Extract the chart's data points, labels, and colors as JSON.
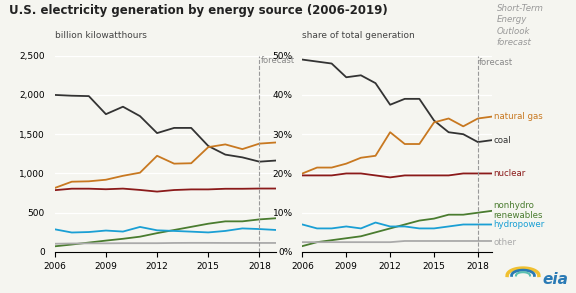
{
  "title": "U.S. electricity generation by energy source (2006-2019)",
  "ylabel_left": "billion kilowatthours",
  "ylabel_right": "share of total generation",
  "forecast_year": 2018,
  "years": [
    2006,
    2007,
    2008,
    2009,
    2010,
    2011,
    2012,
    2013,
    2014,
    2015,
    2016,
    2017,
    2018,
    2019
  ],
  "coal_abs": [
    2000,
    1990,
    1985,
    1755,
    1850,
    1730,
    1514,
    1580,
    1580,
    1350,
    1240,
    1205,
    1150,
    1165
  ],
  "natgas_abs": [
    815,
    895,
    900,
    920,
    970,
    1010,
    1225,
    1125,
    1130,
    1335,
    1370,
    1310,
    1380,
    1395
  ],
  "nuclear_abs": [
    787,
    806,
    806,
    799,
    807,
    790,
    769,
    789,
    797,
    797,
    805,
    805,
    808,
    808
  ],
  "nonhydro_abs": [
    72,
    95,
    120,
    145,
    168,
    195,
    240,
    280,
    320,
    360,
    390,
    390,
    415,
    430
  ],
  "hydro_abs": [
    289,
    248,
    254,
    273,
    260,
    319,
    276,
    268,
    259,
    249,
    268,
    300,
    292,
    280
  ],
  "other_abs": [
    105,
    108,
    110,
    110,
    112,
    112,
    112,
    115,
    116,
    116,
    115,
    115,
    115,
    115
  ],
  "coal_pct": [
    49,
    48.5,
    48,
    44.5,
    45,
    43,
    37.5,
    39,
    39,
    33.5,
    30.5,
    30,
    28,
    28.5
  ],
  "natgas_pct": [
    20,
    21.5,
    21.5,
    22.5,
    24,
    24.5,
    30.5,
    27.5,
    27.5,
    33,
    34,
    32,
    34,
    34.5
  ],
  "nuclear_pct": [
    19.5,
    19.5,
    19.5,
    20,
    20,
    19.5,
    19,
    19.5,
    19.5,
    19.5,
    19.5,
    20,
    20,
    20
  ],
  "nonhydro_pct": [
    1.5,
    2.5,
    3,
    3.5,
    4,
    5,
    6,
    7,
    8,
    8.5,
    9.5,
    9.5,
    10,
    10.5
  ],
  "hydro_pct": [
    7,
    6,
    6,
    6.5,
    6,
    7.5,
    6.5,
    6.5,
    6,
    6,
    6.5,
    7,
    7,
    7
  ],
  "other_pct": [
    2.5,
    2.5,
    2.5,
    2.5,
    2.5,
    2.5,
    2.5,
    2.8,
    2.8,
    2.8,
    2.8,
    2.8,
    2.8,
    2.8
  ],
  "color_coal": "#333333",
  "color_natgas": "#c87820",
  "color_nuclear": "#8b1a1a",
  "color_nonhydro": "#4a7c2f",
  "color_hydro": "#1a9fd4",
  "color_other": "#aaaaaa",
  "color_bg": "#f5f5f0",
  "color_forecast_line": "#999999",
  "short_term_text": "Short-Term\nEnergy\nOutlook\nforecast"
}
